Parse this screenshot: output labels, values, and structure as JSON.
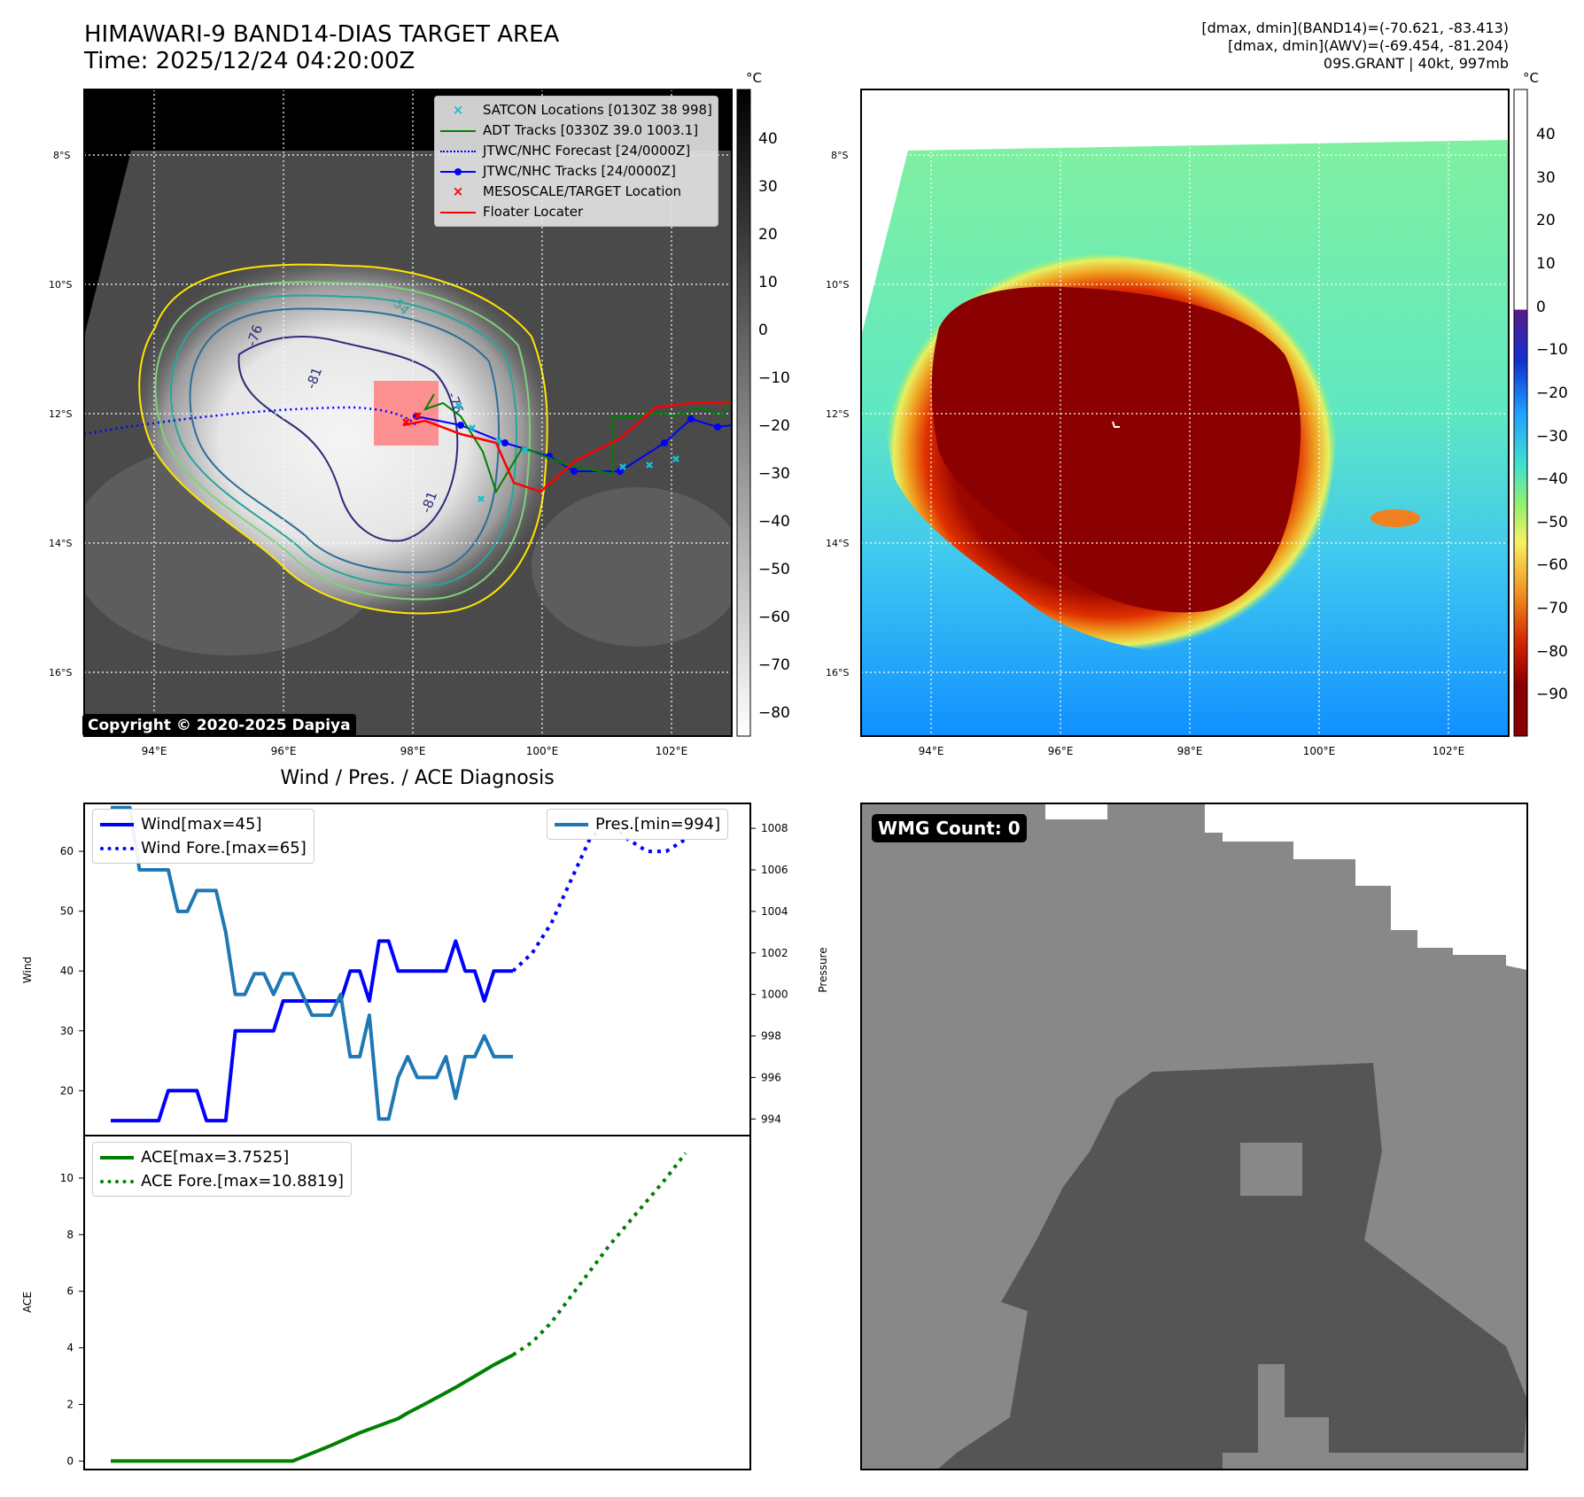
{
  "header": {
    "title_line1": "HIMAWARI-9 BAND14-DIAS TARGET AREA",
    "title_line2": "Time: 2025/12/24 04:20:00Z",
    "info_line1": "[dmax, dmin](BAND14)=(-70.621, -83.413)",
    "info_line2": "[dmax, dmin](AWV)=(-69.454, -81.204)",
    "info_line3": "09S.GRANT | 40kt, 997mb"
  },
  "map_left": {
    "copyright": "Copyright © 2020-2025 Dapiya",
    "lon_ticks": [
      "94°E",
      "96°E",
      "98°E",
      "100°E",
      "102°E"
    ],
    "lat_ticks": [
      "8°S",
      "10°S",
      "12°S",
      "14°S",
      "16°S"
    ],
    "contour_labels": [
      "-76",
      "-81",
      "-76",
      "-81",
      "-54"
    ],
    "legend": [
      {
        "label": "SATCON Locations [0130Z 38 998]",
        "marker": "x",
        "color": "#17becf"
      },
      {
        "label": "ADT Tracks [0330Z 39.0 1003.1]",
        "marker": "line",
        "color": "#008000"
      },
      {
        "label": "JTWC/NHC Forecast [24/0000Z]",
        "marker": "dotted",
        "color": "#0000ff"
      },
      {
        "label": "JTWC/NHC Tracks [24/0000Z]",
        "marker": "line-dot",
        "color": "#0000ff"
      },
      {
        "label": "MESOSCALE/TARGET Location",
        "marker": "x",
        "color": "#ff0000"
      },
      {
        "label": "Floater Locater",
        "marker": "line",
        "color": "#ff0000"
      }
    ],
    "colorbar": {
      "unit": "°C",
      "ticks": [
        "40",
        "30",
        "20",
        "10",
        "0",
        "−10",
        "−20",
        "−30",
        "−40",
        "−50",
        "−60",
        "−70",
        "−80"
      ]
    }
  },
  "map_right": {
    "lon_ticks": [
      "94°E",
      "96°E",
      "98°E",
      "100°E",
      "102°E"
    ],
    "lat_ticks": [
      "8°S",
      "10°S",
      "12°S",
      "14°S",
      "16°S"
    ],
    "colorbar": {
      "unit": "°C",
      "ticks": [
        "40",
        "30",
        "20",
        "10",
        "0",
        "−10",
        "−20",
        "−30",
        "−40",
        "−50",
        "−60",
        "−70",
        "−80",
        "−90"
      ]
    }
  },
  "wmg": {
    "label": "WMG Count: 0"
  },
  "chart_data": [
    {
      "type": "line",
      "title": "Wind / Pres. / ACE Diagnosis",
      "ylabel": "Wind",
      "ylabel_right": "Pressure",
      "ylim": [
        12.5,
        68
      ],
      "ylim_right": [
        993.2,
        1009.2
      ],
      "yticks": [
        "20",
        "30",
        "40",
        "50",
        "60"
      ],
      "yticks_right": [
        "994",
        "996",
        "998",
        "1000",
        "1002",
        "1004",
        "1006",
        "1008"
      ],
      "legend_left": [
        "Wind[max=45]",
        "Wind Fore.[max=65]"
      ],
      "legend_right": [
        "Pres.[min=994]"
      ],
      "series": [
        {
          "name": "Wind",
          "color": "#0000ff",
          "style": "solid",
          "x": [
            0,
            5,
            6,
            9,
            10,
            12,
            13,
            14,
            15,
            16,
            17,
            18,
            19,
            20,
            21,
            22,
            23,
            24,
            25,
            26,
            27,
            28,
            29,
            30,
            31,
            32,
            33,
            34,
            35,
            36,
            37,
            38,
            39,
            40,
            41,
            42
          ],
          "values": [
            15,
            15,
            20,
            20,
            15,
            15,
            30,
            30,
            30,
            30,
            30,
            35,
            35,
            35,
            35,
            35,
            35,
            35,
            40,
            40,
            35,
            45,
            45,
            40,
            40,
            40,
            40,
            40,
            40,
            45,
            40,
            40,
            35,
            40,
            40,
            40
          ]
        },
        {
          "name": "Wind Fore.",
          "color": "#0000ff",
          "style": "dotted",
          "x": [
            42,
            44,
            46,
            48,
            50,
            52,
            54,
            56,
            58,
            60
          ],
          "values": [
            40,
            43,
            48,
            55,
            62,
            65,
            62,
            60,
            60,
            62
          ]
        },
        {
          "name": "Pres.",
          "color": "#1f77b4",
          "style": "solid",
          "axis": "right",
          "x": [
            0,
            2,
            3,
            6,
            7,
            8,
            9,
            11,
            12,
            13,
            14,
            15,
            16,
            17,
            18,
            19,
            20,
            21,
            22,
            23,
            24,
            25,
            26,
            27,
            28,
            29,
            30,
            31,
            32,
            33,
            34,
            35,
            36,
            37,
            38,
            39,
            40,
            41,
            42
          ],
          "values": [
            1009,
            1009,
            1006,
            1006,
            1004,
            1004,
            1005,
            1005,
            1003,
            1000,
            1000,
            1001,
            1001,
            1000,
            1001,
            1001,
            1000,
            999,
            999,
            999,
            1000,
            997,
            997,
            999,
            994,
            994,
            996,
            997,
            996,
            996,
            996,
            997,
            995,
            997,
            997,
            998,
            997,
            997,
            997
          ]
        }
      ]
    },
    {
      "type": "line",
      "ylabel": "ACE",
      "ylim": [
        -0.3,
        11.5
      ],
      "yticks": [
        "0",
        "2",
        "4",
        "6",
        "8",
        "10"
      ],
      "legend": [
        "ACE[max=3.7525]",
        "ACE Fore.[max=10.8819]"
      ],
      "series": [
        {
          "name": "ACE",
          "color": "#008000",
          "style": "solid",
          "x": [
            0,
            19,
            23,
            26,
            30,
            31,
            33,
            36,
            38,
            40,
            42
          ],
          "values": [
            0,
            0,
            0.55,
            1.0,
            1.5,
            1.7,
            2.05,
            2.6,
            3.0,
            3.4,
            3.75
          ]
        },
        {
          "name": "ACE Fore.",
          "color": "#008000",
          "style": "dotted",
          "x": [
            42,
            44,
            46,
            48,
            50,
            52,
            54,
            56,
            58,
            60
          ],
          "values": [
            3.75,
            4.2,
            4.9,
            5.8,
            6.7,
            7.6,
            8.4,
            9.2,
            10.0,
            10.88
          ]
        }
      ]
    }
  ]
}
